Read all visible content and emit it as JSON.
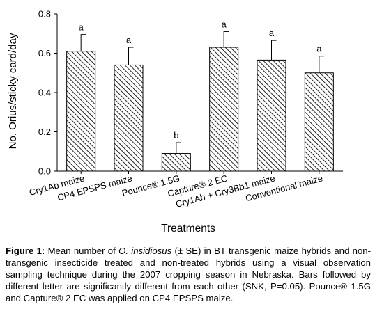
{
  "chart_data": {
    "type": "bar",
    "ylabel": "No. Orius/sticky card/day",
    "xlabel": "Treatments",
    "ylim": [
      0,
      0.8
    ],
    "yticks": [
      "0.0",
      "0.2",
      "0.4",
      "0.6",
      "0.8"
    ],
    "ytick_values": [
      0,
      0.2,
      0.4,
      0.6,
      0.8
    ],
    "categories": [
      "Cry1Ab maize",
      "CP4 EPSPS maize",
      "Pounce® 1.5G",
      "Capture® 2 EC",
      "Cry1Ab + Cry3Bb1 maize",
      "Conventional maize"
    ],
    "values": [
      0.61,
      0.54,
      0.09,
      0.63,
      0.565,
      0.5
    ],
    "errors": [
      0.085,
      0.09,
      0.055,
      0.08,
      0.1,
      0.085
    ],
    "letters": [
      "a",
      "a",
      "b",
      "a",
      "a",
      "a"
    ],
    "bar_fill": "hatched",
    "grid": false,
    "legend": "none"
  },
  "caption": {
    "label": "Figure 1:",
    "text_before": " Mean number of ",
    "species": "O. insidiosus",
    "text_after": " (± SE) in BT transgenic maize hybrids and non-transgenic insecticide treated and non-treated hybrids using a visual observation sampling technique during the 2007 cropping season in Nebraska. Bars followed by different letter are significantly different from each other (SNK, P=0.05). Pounce® 1.5G and Capture® 2 EC was applied on CP4 EPSPS maize."
  }
}
